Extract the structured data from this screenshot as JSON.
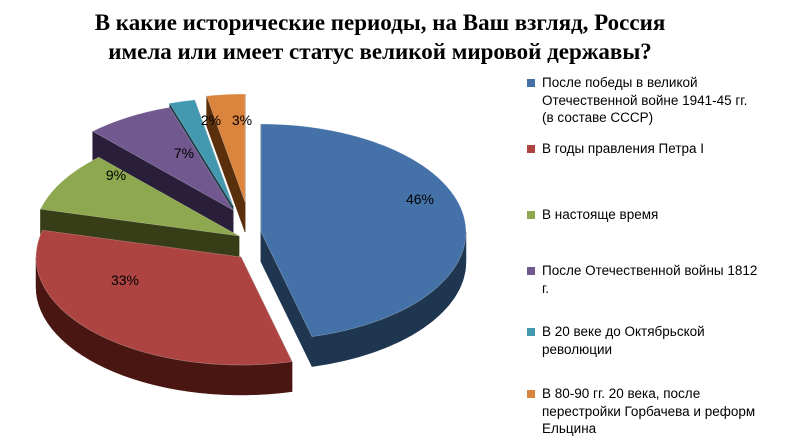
{
  "chart_data": {
    "type": "pie",
    "title_lines": [
      "В какие исторические периоды, на Ваш взгляд, Россия",
      "имела или имеет статус великой мировой державы?"
    ],
    "slices": [
      {
        "label": "После победы в великой Отечественной войне 1941-45 гг. (в составе СССР)",
        "value": 46,
        "display": "46%",
        "color": "#4472A8",
        "side": "#1F3650"
      },
      {
        "label": "В годы правления Петра I",
        "value": 33,
        "display": "33%",
        "color": "#AD4441",
        "side": "#4A1612"
      },
      {
        "label": "В настояще время",
        "value": 9,
        "display": "9%",
        "color": "#8DA84F",
        "side": "#363D17"
      },
      {
        "label": "После Отечественной войны 1812 г.",
        "value": 7,
        "display": "7%",
        "color": "#71588F",
        "side": "#2A1F3A"
      },
      {
        "label": "В 20 веке до Октябрьской революции",
        "value": 2,
        "display": "2%",
        "color": "#4198AF",
        "side": "#153A45"
      },
      {
        "label": "В 80-90 гг. 20 века, после перестройки Горбачева и реформ Ельцина",
        "value": 3,
        "display": "3%",
        "color": "#DB843D",
        "side": "#5A2F0C"
      }
    ],
    "legend": {
      "position": "right",
      "items": [
        [
          "После победы в великой",
          "Отечественной войне 1941-45 гг.",
          "(в составе СССР)"
        ],
        [
          "В годы правления Петра I"
        ],
        [
          "В настояще время"
        ],
        [
          "После Отечественной войны 1812",
          "г."
        ],
        [
          "В 20 веке до Октябрьской",
          "революции"
        ],
        [
          "В 80-90 гг. 20 века, после",
          "перестройки Горбачева и реформ",
          "Ельцина"
        ]
      ]
    }
  }
}
